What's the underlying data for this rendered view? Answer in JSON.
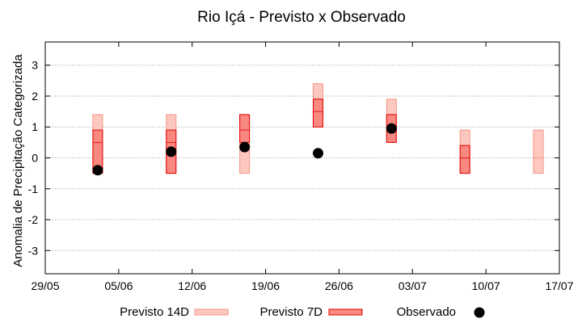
{
  "chart_data": {
    "type": "box",
    "title": "Rio Içá - Previsto x Observado",
    "xlabel": "",
    "ylabel": "Anomalia de Precipitação Categorizada",
    "ylim": [
      -3.75,
      3.75
    ],
    "yticks": [
      -3,
      -2,
      -1,
      0,
      1,
      2,
      3
    ],
    "grid": true,
    "x_tick_labels": [
      "29/05",
      "05/06",
      "12/06",
      "19/06",
      "26/06",
      "03/07",
      "10/07",
      "17/07"
    ],
    "legend_position": "bottom",
    "colors": {
      "previsto_14d_fill": "#fcc8c0",
      "previsto_14d_edge": "#f49484",
      "previsto_7d_fill": "#f88880",
      "previsto_7d_edge": "#e00000",
      "observado": "#000000",
      "grid": "#999999"
    },
    "series": [
      {
        "name": "Previsto 14D",
        "boxes": [
          {
            "x": "03/06",
            "low": -0.5,
            "median": 0.5,
            "high": 1.4
          },
          {
            "x": "10/06",
            "low": -0.5,
            "median": 0.5,
            "high": 1.4
          },
          {
            "x": "17/06",
            "low": -0.5,
            "median": 0.5,
            "high": 1.4
          },
          {
            "x": "24/06",
            "low": 1.0,
            "median": 1.5,
            "high": 2.4
          },
          {
            "x": "01/07",
            "low": 0.5,
            "median": 1.0,
            "high": 1.9
          },
          {
            "x": "08/07",
            "low": -0.5,
            "median": 0.0,
            "high": 0.9
          },
          {
            "x": "15/07",
            "low": -0.5,
            "median": 0.0,
            "high": 0.9
          }
        ]
      },
      {
        "name": "Previsto 7D",
        "boxes": [
          {
            "x": "03/06",
            "low": -0.5,
            "median": 0.5,
            "high": 0.9
          },
          {
            "x": "10/06",
            "low": -0.5,
            "median": 0.5,
            "high": 0.9
          },
          {
            "x": "17/06",
            "low": 0.5,
            "median": 0.9,
            "high": 1.4
          },
          {
            "x": "24/06",
            "low": 1.0,
            "median": 1.5,
            "high": 1.9
          },
          {
            "x": "01/07",
            "low": 0.5,
            "median": 1.0,
            "high": 1.4
          },
          {
            "x": "08/07",
            "low": -0.5,
            "median": 0.0,
            "high": 0.4
          }
        ]
      },
      {
        "name": "Observado",
        "points": [
          {
            "x": "03/06",
            "y": -0.4
          },
          {
            "x": "10/06",
            "y": 0.2
          },
          {
            "x": "17/06",
            "y": 0.35
          },
          {
            "x": "24/06",
            "y": 0.15
          },
          {
            "x": "01/07",
            "y": 0.95
          }
        ]
      }
    ]
  }
}
